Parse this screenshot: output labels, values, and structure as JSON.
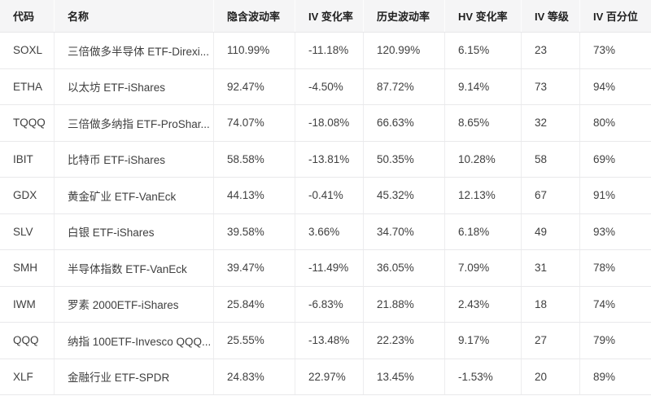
{
  "theme": {
    "header_bg": "#f5f5f6",
    "row_bg": "#ffffff",
    "border_color": "#e9e9eb",
    "header_text_color": "#1f1f1f",
    "cell_text_color": "#404040"
  },
  "table": {
    "columns": [
      {
        "key": "code",
        "label": "代码"
      },
      {
        "key": "name",
        "label": "名称"
      },
      {
        "key": "implied-volatility",
        "label": "隐含波动率"
      },
      {
        "key": "iv-change",
        "label": "IV 变化率"
      },
      {
        "key": "historical-volatility",
        "label": "历史波动率"
      },
      {
        "key": "hv-change",
        "label": "HV 变化率"
      },
      {
        "key": "iv-rank",
        "label": "IV 等级"
      },
      {
        "key": "iv-percentile",
        "label": "IV 百分位"
      }
    ],
    "rows": [
      {
        "cells": [
          "SOXL",
          "三倍做多半导体 ETF-Direxi...",
          "110.99%",
          "-11.18%",
          "120.99%",
          "6.15%",
          "23",
          "73%"
        ]
      },
      {
        "cells": [
          "ETHA",
          "以太坊 ETF-iShares",
          "92.47%",
          "-4.50%",
          "87.72%",
          "9.14%",
          "73",
          "94%"
        ]
      },
      {
        "cells": [
          "TQQQ",
          "三倍做多纳指 ETF-ProShar...",
          "74.07%",
          "-18.08%",
          "66.63%",
          "8.65%",
          "32",
          "80%"
        ]
      },
      {
        "cells": [
          "IBIT",
          "比特币 ETF-iShares",
          "58.58%",
          "-13.81%",
          "50.35%",
          "10.28%",
          "58",
          "69%"
        ]
      },
      {
        "cells": [
          "GDX",
          "黄金矿业 ETF-VanEck",
          "44.13%",
          "-0.41%",
          "45.32%",
          "12.13%",
          "67",
          "91%"
        ]
      },
      {
        "cells": [
          "SLV",
          "白银 ETF-iShares",
          "39.58%",
          "3.66%",
          "34.70%",
          "6.18%",
          "49",
          "93%"
        ]
      },
      {
        "cells": [
          "SMH",
          "半导体指数 ETF-VanEck",
          "39.47%",
          "-11.49%",
          "36.05%",
          "7.09%",
          "31",
          "78%"
        ]
      },
      {
        "cells": [
          "IWM",
          "罗素 2000ETF-iShares",
          "25.84%",
          "-6.83%",
          "21.88%",
          "2.43%",
          "18",
          "74%"
        ]
      },
      {
        "cells": [
          "QQQ",
          "纳指 100ETF-Invesco QQQ...",
          "25.55%",
          "-13.48%",
          "22.23%",
          "9.17%",
          "27",
          "79%"
        ]
      },
      {
        "cells": [
          "XLF",
          "金融行业 ETF-SPDR",
          "24.83%",
          "22.97%",
          "13.45%",
          "-1.53%",
          "20",
          "89%"
        ]
      }
    ]
  }
}
